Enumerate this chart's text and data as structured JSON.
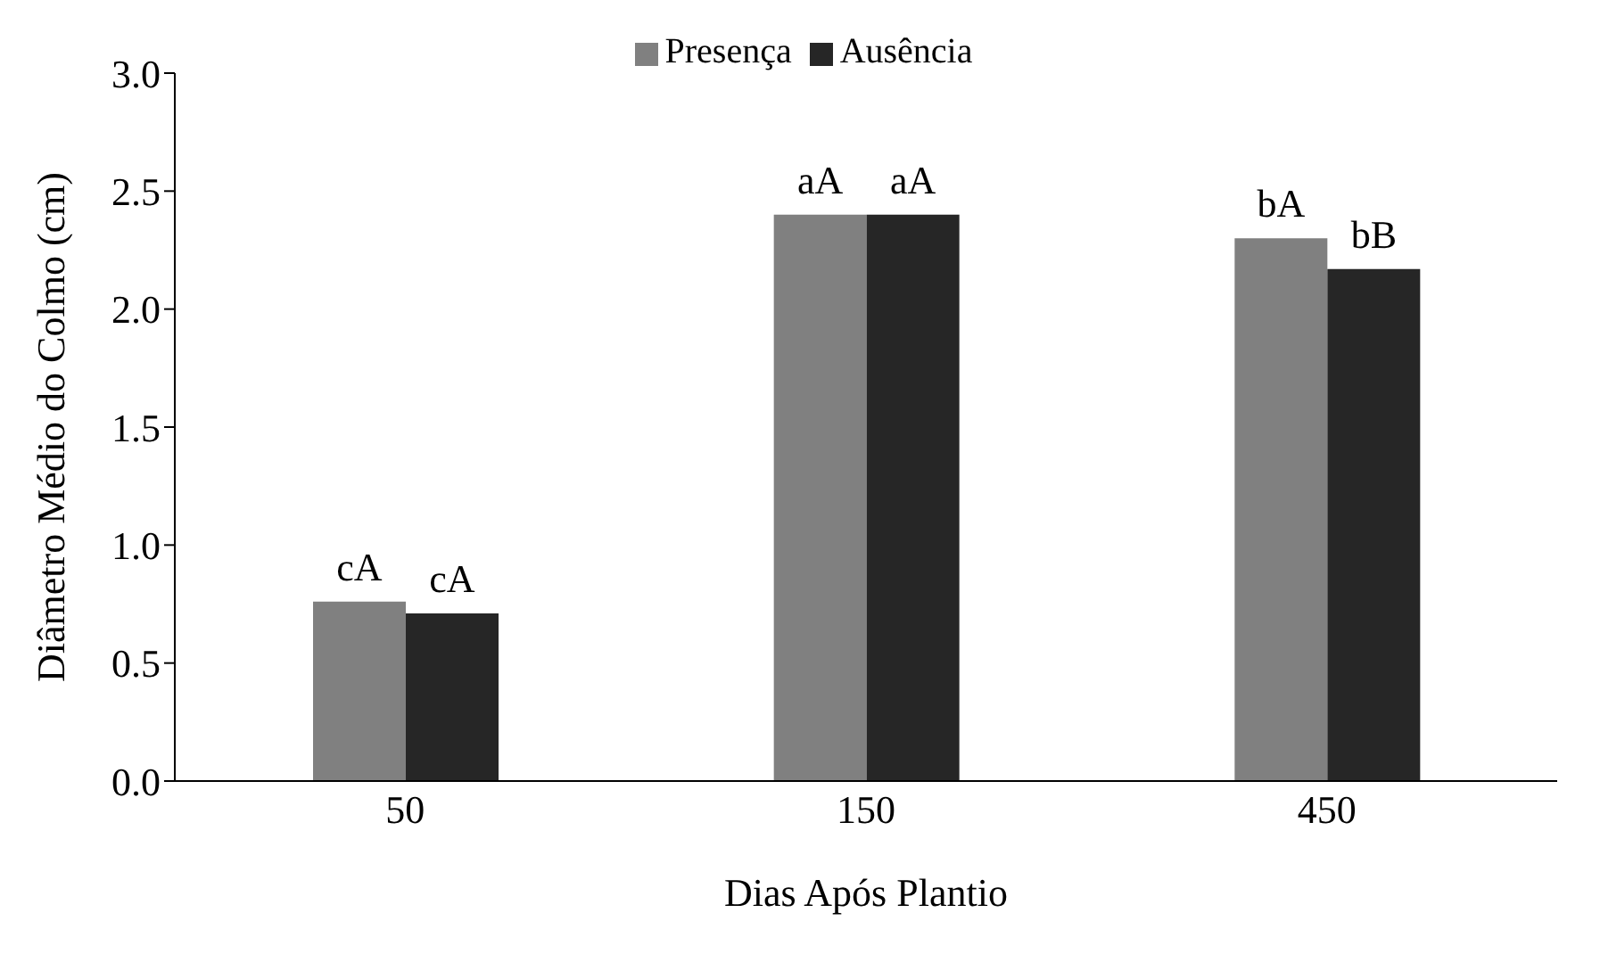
{
  "chart_data": {
    "type": "bar",
    "xlabel": "Dias Após Plantio",
    "ylabel": "Diâmetro Médio do Colmo (cm)",
    "categories": [
      "50",
      "150",
      "450"
    ],
    "series": [
      {
        "name": "Presença",
        "color": "#808080",
        "values": [
          0.76,
          2.4,
          2.3
        ],
        "value_labels": [
          "cA",
          "aA",
          "bA"
        ]
      },
      {
        "name": "Ausência",
        "color": "#262626",
        "values": [
          0.71,
          2.4,
          2.17
        ],
        "value_labels": [
          "cA",
          "aA",
          "bB"
        ]
      }
    ],
    "ylim": [
      0,
      3
    ],
    "yticks": [
      {
        "value": 0,
        "label": "0.0"
      },
      {
        "value": 0.5,
        "label": "0.5"
      },
      {
        "value": 1,
        "label": "1.0"
      },
      {
        "value": 1.5,
        "label": "1.5"
      },
      {
        "value": 2,
        "label": "2.0"
      },
      {
        "value": 2.5,
        "label": "2.5"
      },
      {
        "value": 3,
        "label": "3.0"
      }
    ],
    "grid": false,
    "legend": "top"
  }
}
